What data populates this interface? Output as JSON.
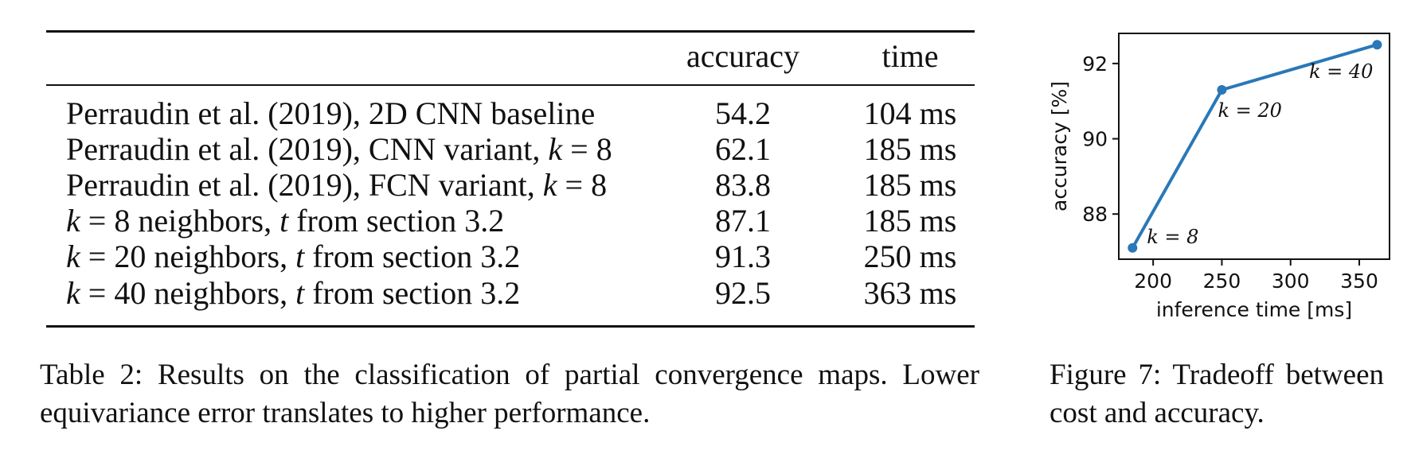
{
  "table": {
    "headers": {
      "accuracy": "accuracy",
      "time": "time"
    },
    "rows": [
      {
        "method": "Perraudin et al. (2019), 2D CNN baseline",
        "accuracy": "54.2",
        "time": "104 ms"
      },
      {
        "method_prefix": "Perraudin et al. (2019), CNN variant, ",
        "method_var": "k",
        "method_suffix": " = 8",
        "accuracy": "62.1",
        "time": "185 ms"
      },
      {
        "method_prefix": "Perraudin et al. (2019), FCN variant, ",
        "method_var": "k",
        "method_suffix": " = 8",
        "accuracy": "83.8",
        "time": "185 ms"
      },
      {
        "var1": "k",
        "mid": " = 8 neighbors, ",
        "var2": "t",
        "end": " from section 3.2",
        "accuracy": "87.1",
        "time": "185 ms"
      },
      {
        "var1": "k",
        "mid": " = 20 neighbors, ",
        "var2": "t",
        "end": " from section 3.2",
        "accuracy": "91.3",
        "time": "250 ms"
      },
      {
        "var1": "k",
        "mid": " = 40 neighbors, ",
        "var2": "t",
        "end": " from section 3.2",
        "accuracy": "92.5",
        "time": "363 ms"
      }
    ]
  },
  "captions": {
    "table": "Table 2: Results on the classification of partial convergence maps. Lower equivariance error translates to higher performance.",
    "figure": "Figure 7: Tradeoff between cost and accuracy."
  },
  "chart_data": {
    "type": "line",
    "x": [
      185,
      250,
      363
    ],
    "y": [
      87.1,
      91.3,
      92.5
    ],
    "xlabel": "inference time [ms]",
    "ylabel": "accuracy [%]",
    "xlim": [
      175,
      372
    ],
    "ylim": [
      86.8,
      92.8
    ],
    "xticks": [
      200,
      250,
      300,
      350
    ],
    "yticks": [
      88,
      90,
      92
    ],
    "annotations": [
      "k = 8",
      "k = 20",
      "k = 40"
    ],
    "color": "#2a78b8",
    "grid": false
  }
}
